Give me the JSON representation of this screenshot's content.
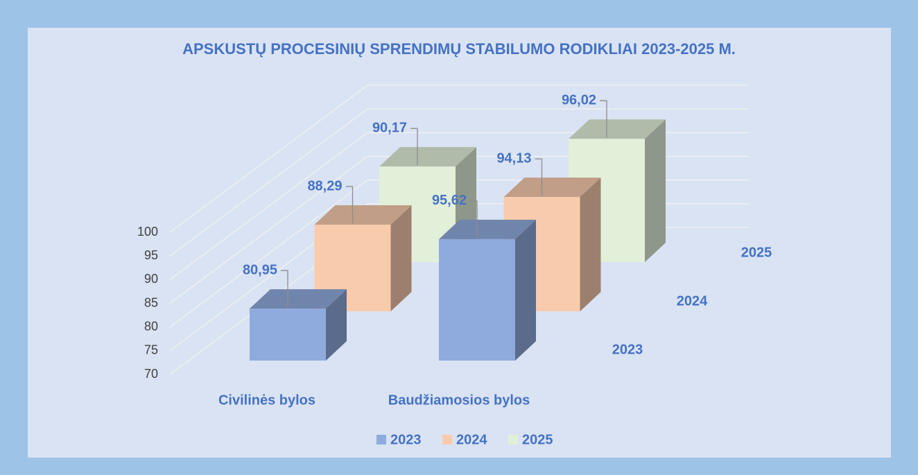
{
  "chart_data": {
    "type": "bar3d",
    "title": "APSKUSTŲ PROCESINIŲ SPRENDIMŲ STABILUMO RODIKLIAI 2023-2025 M.",
    "categories": [
      "Civilinės bylos",
      "Baudžiamosios bylos"
    ],
    "series": [
      {
        "name": "2023",
        "color": "#8faadc",
        "values": [
          80.95,
          95.62
        ],
        "value_labels": [
          "80,95",
          "95,62"
        ]
      },
      {
        "name": "2024",
        "color": "#f8cbad",
        "values": [
          88.29,
          94.13
        ],
        "value_labels": [
          "88,29",
          "94,13"
        ]
      },
      {
        "name": "2025",
        "color": "#e2f0d9",
        "values": [
          90.17,
          96.02
        ],
        "value_labels": [
          "90,17",
          "96,02"
        ]
      }
    ],
    "ylim": [
      70,
      100
    ],
    "yticks": [
      70,
      75,
      80,
      85,
      90,
      95,
      100
    ],
    "grid": true,
    "legend": "bottom"
  }
}
